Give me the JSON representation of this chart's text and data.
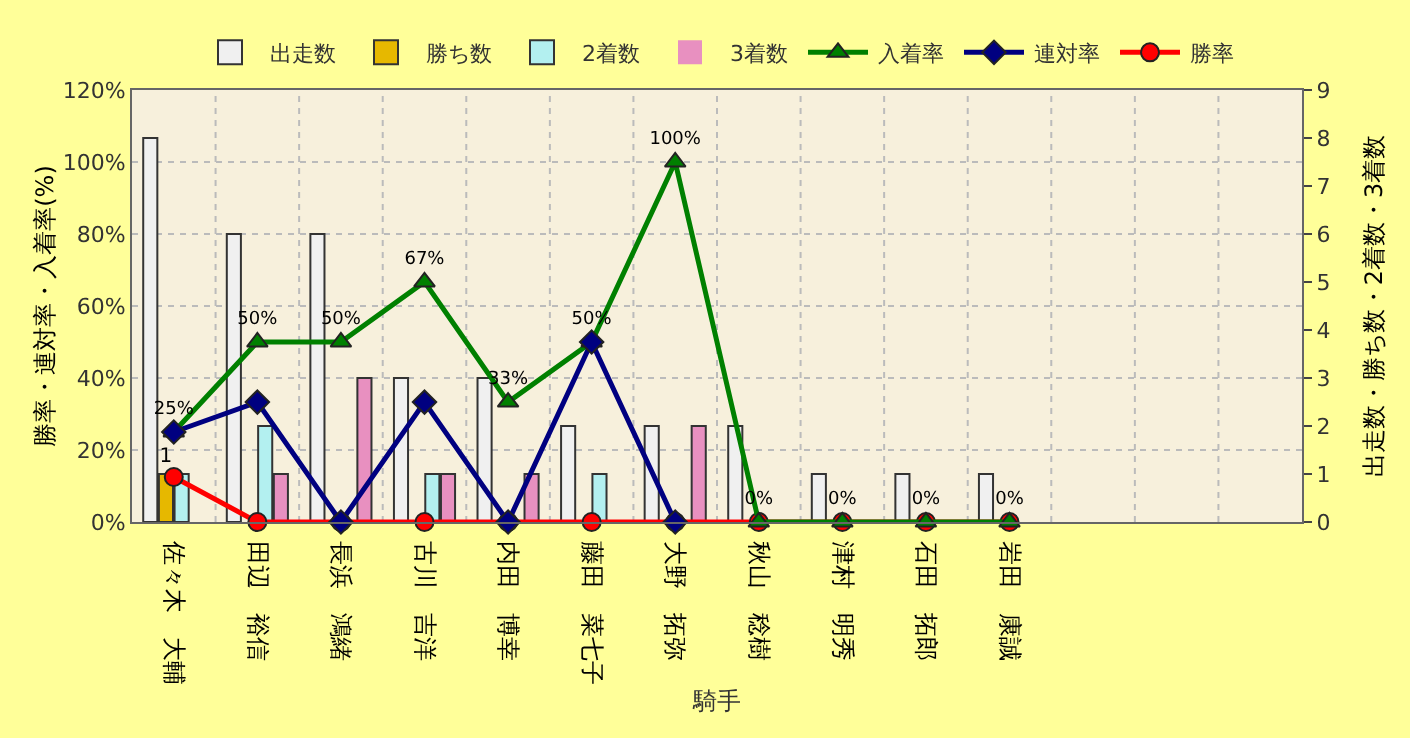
{
  "chart_data": {
    "type": "bar",
    "xlabel": "騎手",
    "ylabel": "勝率・連対率・入着率(%)",
    "y2label": "出走数・勝ち数・2着数・3着数",
    "categories": [
      "佐々木　大輔",
      "田辺　裕信",
      "長浜　鴻緒",
      "古川　吉洋",
      "内田　博幸",
      "藤田　菜七子",
      "大野　拓弥",
      "秋山　稔樹",
      "津村　明秀",
      "石田　拓郎",
      "岩田　康誠",
      null,
      null,
      null
    ],
    "series": [
      {
        "name": "出走数",
        "axis": "y2",
        "color": "#f0f0f0",
        "values": [
          8,
          6,
          6,
          3,
          3,
          2,
          2,
          2,
          1,
          1,
          1,
          null,
          null,
          null
        ]
      },
      {
        "name": "勝ち数",
        "axis": "y2",
        "color": "#e6b800",
        "values": [
          1,
          0,
          0,
          0,
          0,
          0,
          0,
          0,
          0,
          0,
          0,
          null,
          null,
          null
        ],
        "value_labels": [
          "1",
          null,
          null,
          null,
          null,
          null,
          null,
          null,
          null,
          null,
          null,
          null,
          null,
          null
        ]
      },
      {
        "name": "2着数",
        "axis": "y2",
        "color": "#b3f0f0",
        "values": [
          1,
          2,
          0,
          1,
          0,
          1,
          0,
          0,
          0,
          0,
          0,
          null,
          null,
          null
        ]
      },
      {
        "name": "3着数",
        "axis": "y2",
        "color": "#e890c0",
        "values": [
          0,
          1,
          3,
          1,
          1,
          0,
          2,
          0,
          0,
          0,
          0,
          null,
          null,
          null
        ]
      },
      {
        "name": "入着率",
        "type": "line",
        "marker": "triangle",
        "color": "#008000",
        "values": [
          25,
          50,
          50,
          66.7,
          33.3,
          50,
          100,
          0,
          0,
          0,
          0,
          null,
          null,
          null
        ],
        "value_labels": [
          "25%",
          "50%",
          "50%",
          "67%",
          "33%",
          "50%",
          "100%",
          "0%",
          "0%",
          "0%",
          "0%",
          null,
          null,
          null
        ]
      },
      {
        "name": "連対率",
        "type": "line",
        "marker": "diamond",
        "color": "#000080",
        "values": [
          25,
          33.3,
          0,
          33.3,
          0,
          50,
          0,
          null,
          null,
          null,
          null,
          null,
          null,
          null
        ]
      },
      {
        "name": "勝率",
        "type": "line",
        "marker": "circle",
        "color": "#ff0000",
        "values": [
          12.5,
          0,
          0,
          0,
          0,
          0,
          0,
          0,
          0,
          0,
          0,
          null,
          null,
          null
        ]
      }
    ],
    "ylim": [
      0,
      120
    ],
    "yticks": [
      {
        "value": 0,
        "label": "0%"
      },
      {
        "value": 20,
        "label": "20%"
      },
      {
        "value": 40,
        "label": "40%"
      },
      {
        "value": 60,
        "label": "60%"
      },
      {
        "value": 80,
        "label": "80%"
      },
      {
        "value": 100,
        "label": "100%"
      },
      {
        "value": 120,
        "label": "120%"
      }
    ],
    "y2lim": [
      0,
      9
    ],
    "y2ticks": [
      0,
      1,
      2,
      3,
      4,
      5,
      6,
      7,
      8,
      9
    ],
    "grid": true,
    "legend": "top"
  }
}
